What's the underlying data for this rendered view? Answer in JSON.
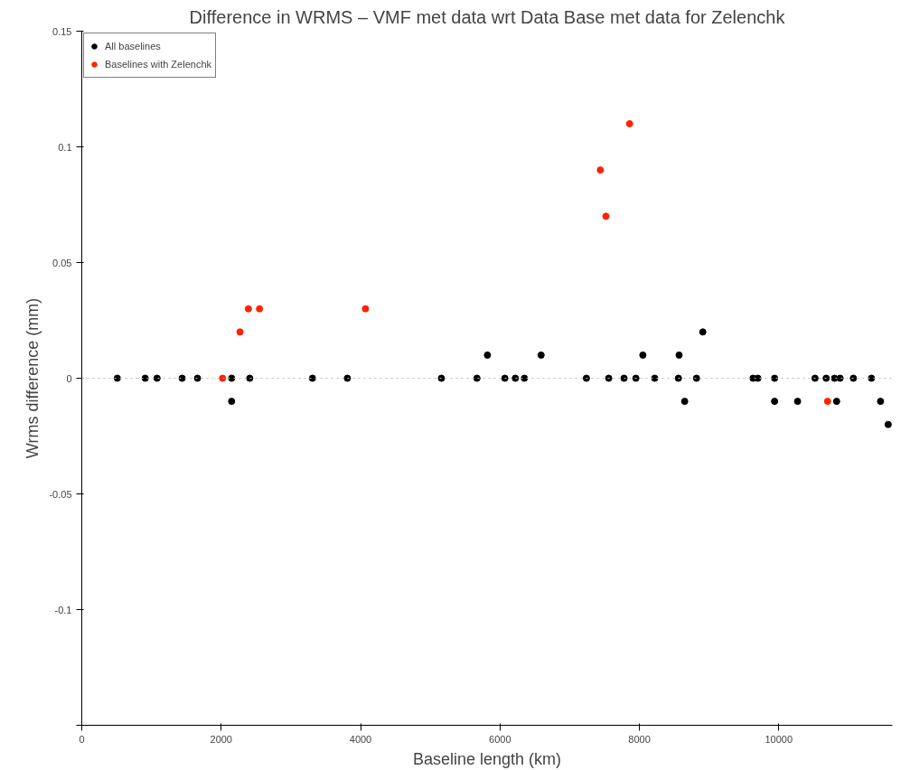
{
  "chart_data": {
    "type": "scatter",
    "title": "Difference in WRMS – VMF met data wrt Data Base met data for Zelenchk",
    "xlabel": "Baseline length (km)",
    "ylabel": "Wrms difference (mm)",
    "series": [
      {
        "name": "All baselines",
        "color": "#000000",
        "x": [
          510,
          910,
          1080,
          1440,
          1660,
          2150,
          2410,
          3310,
          3810,
          5160,
          5670,
          6070,
          6220,
          6350,
          7240,
          7560,
          7780,
          7950,
          8220,
          8560,
          8820,
          9630,
          9700,
          9940,
          10520,
          10680,
          10800,
          10880,
          11070,
          11330,
          5820,
          6590,
          8050,
          8570,
          8910,
          2150,
          8650,
          9940,
          10270,
          10830,
          11460,
          11570
        ],
        "values": [
          0,
          0,
          0,
          0,
          0,
          0,
          0,
          0,
          0,
          0,
          0,
          0,
          0,
          0,
          0,
          0,
          0,
          0,
          0,
          0,
          0,
          0,
          0,
          0,
          0,
          0,
          0,
          0,
          0,
          0,
          0.01,
          0.01,
          0.01,
          0.01,
          0.02,
          -0.01,
          -0.01,
          -0.01,
          -0.01,
          -0.01,
          -0.01,
          -0.02
        ]
      },
      {
        "name": "Baselines with Zelenchk",
        "color": "#ff2200",
        "x": [
          2020,
          2270,
          2390,
          2550,
          4070,
          7440,
          7520,
          7860,
          10700
        ],
        "values": [
          0,
          0.02,
          0.03,
          0.03,
          0.03,
          0.09,
          0.07,
          0.11,
          -0.01
        ]
      }
    ],
    "xlim": [
      0,
      11630
    ],
    "ylim": [
      -0.15,
      0.15
    ],
    "xticks": [
      0,
      2000,
      4000,
      6000,
      8000,
      10000
    ],
    "yticks": [
      {
        "value": -0.15,
        "label": null
      },
      -0.1,
      -0.05,
      0,
      0.05,
      0.1,
      0.15
    ],
    "ref_lines": [
      {
        "axis": "y",
        "value": 0,
        "label": null,
        "color": "#bbbbbb",
        "line_style": "dotted"
      }
    ],
    "grid": false,
    "legend": "top left",
    "marker": "circle"
  }
}
